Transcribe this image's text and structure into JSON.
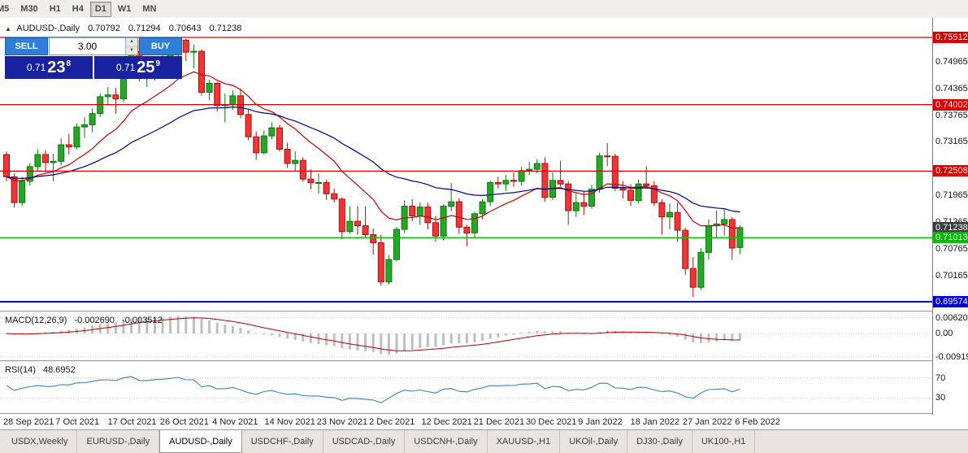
{
  "toolbar": {
    "timeframes": [
      {
        "label": "M5",
        "active": false
      },
      {
        "label": "M30",
        "active": false
      },
      {
        "label": "H1",
        "active": false
      },
      {
        "label": "H4",
        "active": false
      },
      {
        "label": "D1",
        "active": true
      },
      {
        "label": "W1",
        "active": false
      },
      {
        "label": "MN",
        "active": false
      }
    ]
  },
  "chart": {
    "title": {
      "collapse_icon": "▲",
      "symbol": "AUDUSD-,Daily",
      "open": "0.70792",
      "high": "0.71294",
      "low": "0.70643",
      "close": "0.71238"
    }
  },
  "trade_widget": {
    "sell_label": "SELL",
    "buy_label": "BUY",
    "volume": "3.00",
    "sell_price": {
      "prefix": "0.71",
      "big": "23",
      "sup": "8"
    },
    "buy_price": {
      "prefix": "0.71",
      "big": "25",
      "sup": "9"
    }
  },
  "price_axis": {
    "plain_labels": [
      "0.74965",
      "0.74365",
      "0.73765",
      "0.73165",
      "0.71965",
      "0.71365",
      "0.70765",
      "0.70165"
    ],
    "badges": [
      {
        "text": "0.75512",
        "color": "#dd0000"
      },
      {
        "text": "0.74002",
        "color": "#dd0000"
      },
      {
        "text": "0.72508",
        "color": "#dd0000"
      },
      {
        "text": "0.71238",
        "color": "#3c3c3c"
      },
      {
        "text": "0.71013",
        "color": "#00bb00"
      },
      {
        "text": "0.69574",
        "color": "#0000cc"
      }
    ]
  },
  "levels": [
    {
      "price": 0.75512,
      "color": "#dd0000",
      "width": 1.3
    },
    {
      "price": 0.74002,
      "color": "#dd0000",
      "width": 1.3
    },
    {
      "price": 0.72508,
      "color": "#dd0000",
      "width": 1.3
    },
    {
      "price": 0.71013,
      "color": "#00cc00",
      "width": 1.5
    },
    {
      "price": 0.69574,
      "color": "#0000cc",
      "width": 2
    }
  ],
  "macd_panel": {
    "label": "MACD(12,26,9)",
    "value_main": "-0.002690",
    "value_signal": "-0.003512",
    "axis_labels": [
      "0.00620",
      "0.00",
      "-0.00919"
    ]
  },
  "rsi_panel": {
    "label": "RSI(14)",
    "value": "48.6952",
    "axis_labels": [
      "70",
      "30"
    ]
  },
  "colors": {
    "up": "#27a727",
    "up_stroke": "#0a7a0a",
    "down": "#ef3535",
    "down_stroke": "#a81414",
    "ma_fast": "#cc0000",
    "ma_slow": "#000088",
    "macd_signal": "#b30000",
    "histogram": "#bfbfbf",
    "rsi": "#3e7fc1"
  },
  "chart_data": {
    "type": "candlestick",
    "symbol": "AUDUSD-",
    "timeframe": "Daily",
    "x_labels": [
      "28 Sep 2021",
      "7 Oct 2021",
      "17 Oct 2021",
      "26 Oct 2021",
      "4 Nov 2021",
      "14 Nov 2021",
      "23 Nov 2021",
      "2 Dec 2021",
      "12 Dec 2021",
      "21 Dec 2021",
      "30 Dec 2021",
      "9 Jan 2022",
      "18 Jan 2022",
      "27 Jan 2022",
      "6 Feb 2022"
    ],
    "indicators": {
      "ma_fast_period": 13,
      "ma_slow_period": 34,
      "macd": [
        12,
        26,
        9
      ],
      "rsi": 14
    },
    "candles": [
      [
        0.7288,
        0.7295,
        0.7228,
        0.7238
      ],
      [
        0.7238,
        0.7246,
        0.7169,
        0.718
      ],
      [
        0.718,
        0.7238,
        0.7172,
        0.7228
      ],
      [
        0.7228,
        0.7268,
        0.7218,
        0.7261
      ],
      [
        0.7261,
        0.73,
        0.7252,
        0.7288
      ],
      [
        0.7288,
        0.7298,
        0.7248,
        0.727
      ],
      [
        0.727,
        0.729,
        0.7228,
        0.7273
      ],
      [
        0.7273,
        0.7325,
        0.7264,
        0.731
      ],
      [
        0.731,
        0.7335,
        0.7288,
        0.7305
      ],
      [
        0.7305,
        0.7358,
        0.73,
        0.735
      ],
      [
        0.735,
        0.7372,
        0.7325,
        0.7355
      ],
      [
        0.7355,
        0.7392,
        0.7338,
        0.738
      ],
      [
        0.738,
        0.7425,
        0.7372,
        0.7418
      ],
      [
        0.7418,
        0.744,
        0.7398,
        0.7422
      ],
      [
        0.7422,
        0.7438,
        0.738,
        0.7413
      ],
      [
        0.7413,
        0.748,
        0.7405,
        0.7477
      ],
      [
        0.7477,
        0.7525,
        0.7462,
        0.7519
      ],
      [
        0.7519,
        0.7546,
        0.7452,
        0.7468
      ],
      [
        0.7468,
        0.7505,
        0.744,
        0.7468
      ],
      [
        0.7468,
        0.75,
        0.7455,
        0.7488
      ],
      [
        0.7488,
        0.753,
        0.7478,
        0.75
      ],
      [
        0.75,
        0.7536,
        0.7464,
        0.7518
      ],
      [
        0.7518,
        0.7551,
        0.7498,
        0.7545
      ],
      [
        0.7545,
        0.7548,
        0.7498,
        0.7518
      ],
      [
        0.7518,
        0.7535,
        0.7482,
        0.752
      ],
      [
        0.752,
        0.7524,
        0.742,
        0.7428
      ],
      [
        0.7428,
        0.7456,
        0.741,
        0.7448
      ],
      [
        0.7448,
        0.7452,
        0.7385,
        0.7398
      ],
      [
        0.7398,
        0.7425,
        0.736,
        0.74
      ],
      [
        0.74,
        0.7432,
        0.7388,
        0.742
      ],
      [
        0.742,
        0.7436,
        0.737,
        0.7378
      ],
      [
        0.7378,
        0.7388,
        0.732,
        0.7328
      ],
      [
        0.7328,
        0.734,
        0.7276,
        0.7292
      ],
      [
        0.7292,
        0.7342,
        0.7288,
        0.733
      ],
      [
        0.733,
        0.736,
        0.7322,
        0.7348
      ],
      [
        0.7348,
        0.7355,
        0.7295,
        0.73
      ],
      [
        0.73,
        0.7315,
        0.7258,
        0.7268
      ],
      [
        0.7268,
        0.7296,
        0.725,
        0.7275
      ],
      [
        0.7275,
        0.7282,
        0.7227,
        0.7233
      ],
      [
        0.7233,
        0.7255,
        0.721,
        0.7225
      ],
      [
        0.7225,
        0.7245,
        0.72,
        0.7225
      ],
      [
        0.7225,
        0.7232,
        0.7186,
        0.72
      ],
      [
        0.72,
        0.7212,
        0.718,
        0.7188
      ],
      [
        0.7188,
        0.7192,
        0.7098,
        0.7115
      ],
      [
        0.7115,
        0.7172,
        0.711,
        0.7138
      ],
      [
        0.7138,
        0.7172,
        0.7108,
        0.7128
      ],
      [
        0.7128,
        0.7172,
        0.71,
        0.7108
      ],
      [
        0.7108,
        0.7122,
        0.7063,
        0.709
      ],
      [
        0.709,
        0.7108,
        0.6994,
        0.7002
      ],
      [
        0.7002,
        0.7062,
        0.6996,
        0.7052
      ],
      [
        0.7052,
        0.7125,
        0.7048,
        0.712
      ],
      [
        0.712,
        0.7185,
        0.7112,
        0.7172
      ],
      [
        0.7172,
        0.7188,
        0.7138,
        0.715
      ],
      [
        0.715,
        0.718,
        0.713,
        0.717
      ],
      [
        0.717,
        0.718,
        0.712,
        0.7135
      ],
      [
        0.7135,
        0.715,
        0.7092,
        0.7105
      ],
      [
        0.7105,
        0.7176,
        0.7095,
        0.7172
      ],
      [
        0.7172,
        0.7224,
        0.716,
        0.7182
      ],
      [
        0.7182,
        0.719,
        0.711,
        0.7125
      ],
      [
        0.7125,
        0.713,
        0.7082,
        0.7112
      ],
      [
        0.7112,
        0.716,
        0.7102,
        0.7155
      ],
      [
        0.7155,
        0.7188,
        0.7142,
        0.7182
      ],
      [
        0.7182,
        0.723,
        0.7172,
        0.7225
      ],
      [
        0.7225,
        0.7238,
        0.7212,
        0.7222
      ],
      [
        0.7222,
        0.7242,
        0.7206,
        0.723
      ],
      [
        0.723,
        0.7248,
        0.7216,
        0.7228
      ],
      [
        0.7228,
        0.726,
        0.7218,
        0.7252
      ],
      [
        0.7252,
        0.7272,
        0.7242,
        0.7255
      ],
      [
        0.7255,
        0.7278,
        0.7246,
        0.7268
      ],
      [
        0.7268,
        0.7282,
        0.7182,
        0.7192
      ],
      [
        0.7192,
        0.7248,
        0.7186,
        0.723
      ],
      [
        0.723,
        0.7274,
        0.7216,
        0.7222
      ],
      [
        0.7222,
        0.7228,
        0.713,
        0.7162
      ],
      [
        0.7162,
        0.7202,
        0.7148,
        0.718
      ],
      [
        0.718,
        0.7206,
        0.7152,
        0.7172
      ],
      [
        0.7172,
        0.722,
        0.7166,
        0.721
      ],
      [
        0.721,
        0.7292,
        0.7202,
        0.7285
      ],
      [
        0.7285,
        0.7314,
        0.7262,
        0.7284
      ],
      [
        0.7284,
        0.729,
        0.7206,
        0.7212
      ],
      [
        0.7212,
        0.7228,
        0.719,
        0.7208
      ],
      [
        0.7208,
        0.7222,
        0.7172,
        0.7185
      ],
      [
        0.7185,
        0.7232,
        0.7178,
        0.7222
      ],
      [
        0.7222,
        0.7262,
        0.7212,
        0.7218
      ],
      [
        0.7218,
        0.7228,
        0.7172,
        0.718
      ],
      [
        0.718,
        0.7188,
        0.7108,
        0.7148
      ],
      [
        0.7148,
        0.7178,
        0.712,
        0.7158
      ],
      [
        0.7158,
        0.718,
        0.7092,
        0.7118
      ],
      [
        0.7118,
        0.7124,
        0.7018,
        0.7032
      ],
      [
        0.7032,
        0.7058,
        0.6968,
        0.699
      ],
      [
        0.699,
        0.7078,
        0.6984,
        0.7068
      ],
      [
        0.7068,
        0.7142,
        0.7052,
        0.7128
      ],
      [
        0.7128,
        0.7162,
        0.71,
        0.7132
      ],
      [
        0.7132,
        0.7168,
        0.7106,
        0.7142
      ],
      [
        0.7142,
        0.7148,
        0.7051,
        0.7078
      ],
      [
        0.70792,
        0.71294,
        0.70643,
        0.71238
      ]
    ]
  },
  "tabs": [
    {
      "label": "USDX,Weekly",
      "active": false
    },
    {
      "label": "EURUSD-,Daily",
      "active": false
    },
    {
      "label": "AUDUSD-,Daily",
      "active": true
    },
    {
      "label": "USDCHF-,Daily",
      "active": false
    },
    {
      "label": "USDCAD-,Daily",
      "active": false
    },
    {
      "label": "USDCNH-,Daily",
      "active": false
    },
    {
      "label": "XAUUSD-,H1",
      "active": false
    },
    {
      "label": "UKOil-,Daily",
      "active": false
    },
    {
      "label": "DJ30-,Daily",
      "active": false
    },
    {
      "label": "UK100-,H1",
      "active": false
    }
  ]
}
